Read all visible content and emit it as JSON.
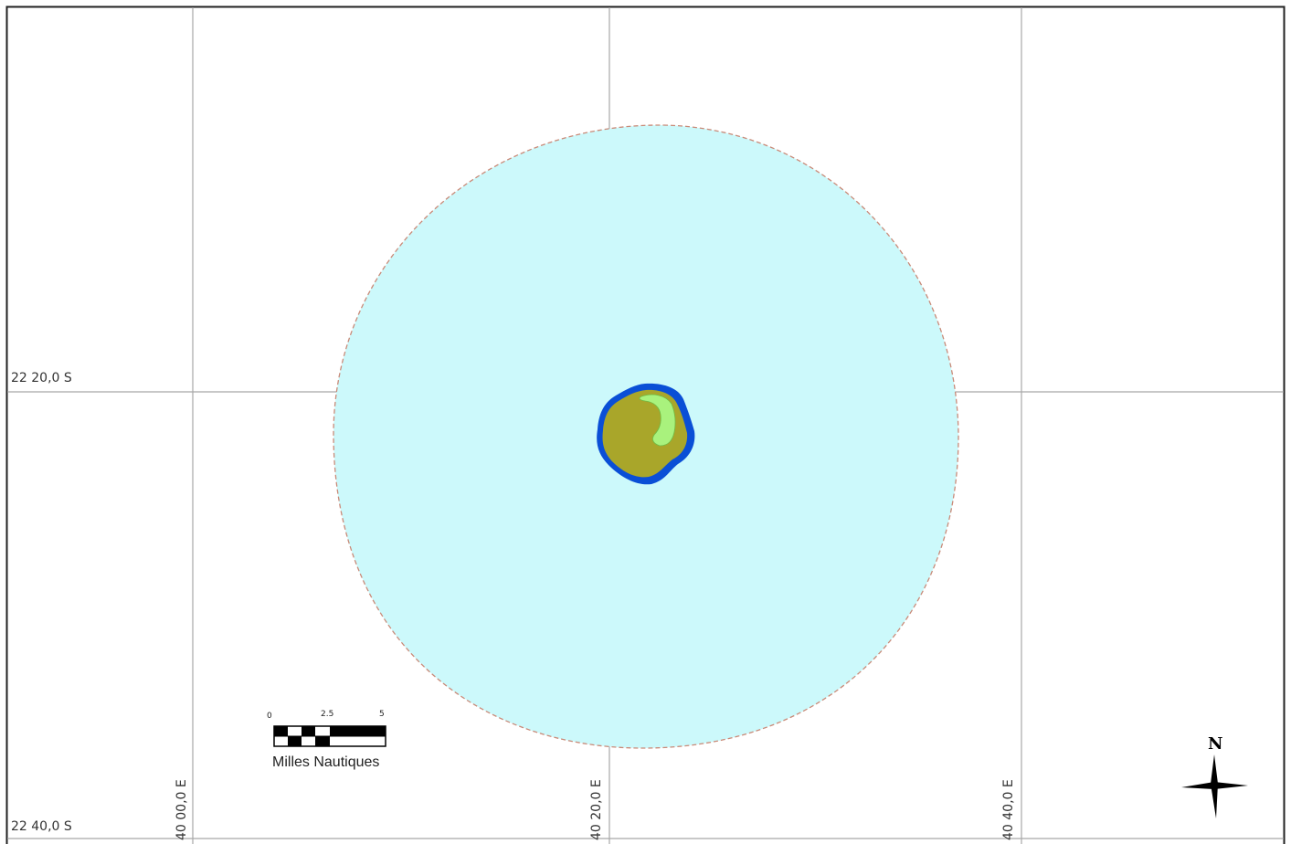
{
  "map": {
    "lat_labels": [
      "22 20,0 S",
      "22 40,0 S"
    ],
    "lon_labels": [
      "40 00,0 E",
      "40 20,0 E",
      "40 40,0 E"
    ],
    "scale_bar": {
      "ticks": [
        "0",
        "2.5",
        "5"
      ],
      "unit": "Milles Nautiques"
    },
    "north_arrow": {
      "label": "N"
    },
    "colors": {
      "zone_fill": "#ccf9fb",
      "zone_outline": "#c98a78",
      "reef": "#0a4fd6",
      "island": "#a9a62a",
      "lagoon": "#a9f27d",
      "grid": "#a8a8a8",
      "border": "#222222"
    }
  }
}
